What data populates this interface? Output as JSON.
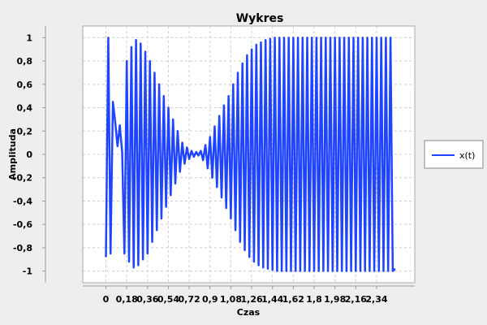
{
  "chart_data": {
    "type": "line",
    "title": "Wykres",
    "xlabel": "Czas",
    "ylabel": "Amplituda",
    "xlim": [
      -0.2,
      2.67
    ],
    "ylim": [
      -1.1,
      1.1
    ],
    "x_ticks": [
      "0",
      "0,18",
      "0,36",
      "0,54",
      "0,72",
      "0,9",
      "1,08",
      "1,26",
      "1,44",
      "1,62",
      "1,8",
      "1,98",
      "2,16",
      "2,34"
    ],
    "y_ticks": [
      "1",
      "0,8",
      "0,6",
      "0,4",
      "0,2",
      "0",
      "-0,2",
      "-0,4",
      "-0,6",
      "-0,8",
      "-1"
    ],
    "grid": true,
    "legend_position": "right",
    "series": [
      {
        "name": "x(t)",
        "color": "#1f44ff",
        "x": [
          0,
          0.02,
          0.04,
          0.06,
          0.08,
          0.1,
          0.12,
          0.14,
          0.16,
          0.18,
          0.2,
          0.22,
          0.24,
          0.26,
          0.28,
          0.3,
          0.32,
          0.34,
          0.36,
          0.38,
          0.4,
          0.42,
          0.44,
          0.46,
          0.48,
          0.5,
          0.52,
          0.54,
          0.56,
          0.58,
          0.6,
          0.62,
          0.64,
          0.66,
          0.68,
          0.7,
          0.72,
          0.74,
          0.76,
          0.78,
          0.8,
          0.82,
          0.84,
          0.86,
          0.88,
          0.9,
          0.92,
          0.94,
          0.96,
          0.98,
          1.0,
          1.02,
          1.04,
          1.06,
          1.08,
          1.1,
          1.12,
          1.14,
          1.16,
          1.18,
          1.2,
          1.22,
          1.24,
          1.26,
          1.28,
          1.3,
          1.32,
          1.34,
          1.36,
          1.38,
          1.4,
          1.42,
          1.44,
          1.46,
          1.48,
          1.5,
          1.52,
          1.54,
          1.56,
          1.58,
          1.6,
          1.62,
          1.64,
          1.66,
          1.68,
          1.7,
          1.72,
          1.74,
          1.76,
          1.78,
          1.8,
          1.82,
          1.84,
          1.86,
          1.88,
          1.9,
          1.92,
          1.94,
          1.96,
          1.98,
          2.0,
          2.02,
          2.04,
          2.06,
          2.08,
          2.1,
          2.12,
          2.14,
          2.16,
          2.18,
          2.2,
          2.22,
          2.24,
          2.26,
          2.28,
          2.3,
          2.32,
          2.34,
          2.36,
          2.38,
          2.4,
          2.42,
          2.44,
          2.46,
          2.48,
          2.5
        ],
        "values": [
          -0.88,
          1.0,
          -0.85,
          0.45,
          0.28,
          0.07,
          0.25,
          0.02,
          -0.85,
          0.8,
          -0.92,
          0.92,
          -0.97,
          0.98,
          -0.95,
          0.95,
          -0.9,
          0.88,
          -0.85,
          0.8,
          -0.75,
          0.7,
          -0.65,
          0.6,
          -0.55,
          0.5,
          -0.45,
          0.4,
          -0.35,
          0.3,
          -0.25,
          0.2,
          -0.15,
          0.1,
          -0.08,
          0.06,
          -0.04,
          0.03,
          -0.02,
          0.02,
          -0.01,
          0.03,
          -0.05,
          0.08,
          -0.12,
          0.15,
          -0.2,
          0.24,
          -0.28,
          0.33,
          -0.37,
          0.42,
          -0.46,
          0.5,
          -0.55,
          0.6,
          -0.65,
          0.7,
          -0.75,
          0.78,
          -0.82,
          0.85,
          -0.88,
          0.9,
          -0.92,
          0.94,
          -0.95,
          0.96,
          -0.97,
          0.98,
          -0.98,
          0.99,
          -0.99,
          1.0,
          -1.0,
          1.0,
          -1.0,
          1.0,
          -1.0,
          1.0,
          -1.0,
          1.0,
          -1.0,
          1.0,
          -1.0,
          1.0,
          -1.0,
          1.0,
          -1.0,
          1.0,
          -1.0,
          1.0,
          -1.0,
          1.0,
          -1.0,
          1.0,
          -1.0,
          1.0,
          -1.0,
          1.0,
          -1.0,
          1.0,
          -1.0,
          1.0,
          -1.0,
          1.0,
          -1.0,
          1.0,
          -1.0,
          1.0,
          -1.0,
          1.0,
          -1.0,
          1.0,
          -1.0,
          1.0,
          -1.0,
          1.0,
          -1.0,
          1.0,
          -1.0,
          1.0,
          -1.0,
          1.0,
          -1.0,
          -0.98
        ]
      }
    ]
  }
}
